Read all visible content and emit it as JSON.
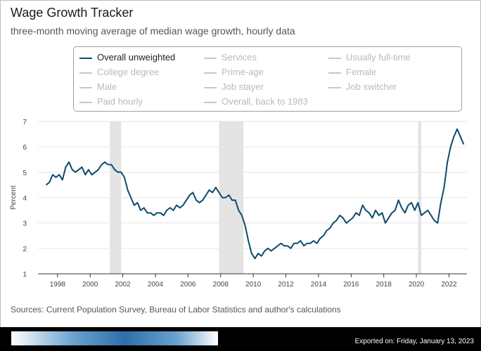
{
  "header": {
    "title": "Wage Growth Tracker",
    "subtitle": "three-month moving average of median wage growth, hourly data"
  },
  "legend": {
    "items": [
      {
        "label": "Overall unweighted",
        "active": true
      },
      {
        "label": "Services",
        "active": false
      },
      {
        "label": "Usually full-time",
        "active": false
      },
      {
        "label": "College degree",
        "active": false
      },
      {
        "label": "Prime-age",
        "active": false
      },
      {
        "label": "Female",
        "active": false
      },
      {
        "label": "Male",
        "active": false
      },
      {
        "label": "Job stayer",
        "active": false
      },
      {
        "label": "Job switcher",
        "active": false
      },
      {
        "label": "Paid hourly",
        "active": false
      },
      {
        "label": "Overall, back to 1983",
        "active": false
      }
    ]
  },
  "chart_data": {
    "type": "line",
    "ylabel": "Percent",
    "xlabel": "",
    "ylim": [
      1,
      7
    ],
    "xlim": [
      1996.8,
      2023.1
    ],
    "yticks": [
      1,
      2,
      3,
      4,
      5,
      6,
      7
    ],
    "xticks": [
      1998,
      2000,
      2002,
      2004,
      2006,
      2008,
      2010,
      2012,
      2014,
      2016,
      2018,
      2020,
      2022
    ],
    "grid": "horizontal",
    "line_color": "#0e4a6e",
    "recession_color": "#e4e4e4",
    "recessions": [
      [
        2001.2,
        2001.9
      ],
      [
        2007.9,
        2009.4
      ],
      [
        2020.1,
        2020.3
      ]
    ],
    "series": [
      {
        "name": "Overall unweighted",
        "x": [
          1997.3,
          1997.5,
          1997.7,
          1997.9,
          1998.1,
          1998.3,
          1998.5,
          1998.7,
          1998.9,
          1999.1,
          1999.3,
          1999.5,
          1999.7,
          1999.9,
          2000.1,
          2000.3,
          2000.5,
          2000.7,
          2000.9,
          2001.1,
          2001.3,
          2001.5,
          2001.7,
          2001.9,
          2002.1,
          2002.3,
          2002.5,
          2002.7,
          2002.9,
          2003.1,
          2003.3,
          2003.5,
          2003.7,
          2003.9,
          2004.1,
          2004.3,
          2004.5,
          2004.7,
          2004.9,
          2005.1,
          2005.3,
          2005.5,
          2005.7,
          2005.9,
          2006.1,
          2006.3,
          2006.5,
          2006.7,
          2006.9,
          2007.1,
          2007.3,
          2007.5,
          2007.7,
          2007.9,
          2008.1,
          2008.3,
          2008.5,
          2008.7,
          2008.9,
          2009.1,
          2009.3,
          2009.5,
          2009.7,
          2009.9,
          2010.1,
          2010.3,
          2010.5,
          2010.7,
          2010.9,
          2011.1,
          2011.3,
          2011.5,
          2011.7,
          2011.9,
          2012.1,
          2012.3,
          2012.5,
          2012.7,
          2012.9,
          2013.1,
          2013.3,
          2013.5,
          2013.7,
          2013.9,
          2014.1,
          2014.3,
          2014.5,
          2014.7,
          2014.9,
          2015.1,
          2015.3,
          2015.5,
          2015.7,
          2015.9,
          2016.1,
          2016.3,
          2016.5,
          2016.7,
          2016.9,
          2017.1,
          2017.3,
          2017.5,
          2017.7,
          2017.9,
          2018.1,
          2018.3,
          2018.5,
          2018.7,
          2018.9,
          2019.1,
          2019.3,
          2019.5,
          2019.7,
          2019.9,
          2020.1,
          2020.3,
          2020.5,
          2020.7,
          2020.9,
          2021.1,
          2021.3,
          2021.5,
          2021.7,
          2021.9,
          2022.1,
          2022.3,
          2022.5,
          2022.7,
          2022.9
        ],
        "values": [
          4.5,
          4.6,
          4.9,
          4.8,
          4.9,
          4.7,
          5.2,
          5.4,
          5.1,
          5.0,
          5.1,
          5.2,
          4.9,
          5.1,
          4.9,
          5.0,
          5.1,
          5.3,
          5.4,
          5.3,
          5.3,
          5.1,
          5.0,
          5.0,
          4.8,
          4.3,
          4.0,
          3.7,
          3.8,
          3.5,
          3.6,
          3.4,
          3.4,
          3.3,
          3.4,
          3.4,
          3.3,
          3.5,
          3.6,
          3.5,
          3.7,
          3.6,
          3.7,
          3.9,
          4.1,
          4.2,
          3.9,
          3.8,
          3.9,
          4.1,
          4.3,
          4.2,
          4.4,
          4.2,
          4.0,
          4.0,
          4.1,
          3.9,
          3.9,
          3.5,
          3.3,
          2.9,
          2.3,
          1.8,
          1.6,
          1.8,
          1.7,
          1.9,
          2.0,
          1.9,
          2.0,
          2.1,
          2.2,
          2.1,
          2.1,
          2.0,
          2.2,
          2.2,
          2.3,
          2.1,
          2.2,
          2.2,
          2.3,
          2.2,
          2.4,
          2.5,
          2.7,
          2.8,
          3.0,
          3.1,
          3.3,
          3.2,
          3.0,
          3.1,
          3.2,
          3.4,
          3.3,
          3.7,
          3.5,
          3.4,
          3.2,
          3.5,
          3.3,
          3.4,
          3.0,
          3.2,
          3.4,
          3.5,
          3.9,
          3.6,
          3.4,
          3.7,
          3.8,
          3.5,
          3.8,
          3.3,
          3.4,
          3.5,
          3.3,
          3.1,
          3.0,
          3.8,
          4.4,
          5.4,
          6.0,
          6.4,
          6.7,
          6.4,
          6.1
        ]
      }
    ]
  },
  "footer": {
    "source": "Sources: Current Population Survey, Bureau of Labor Statistics and author's calculations",
    "exported": "Exported on: Friday, January 13, 2023"
  }
}
